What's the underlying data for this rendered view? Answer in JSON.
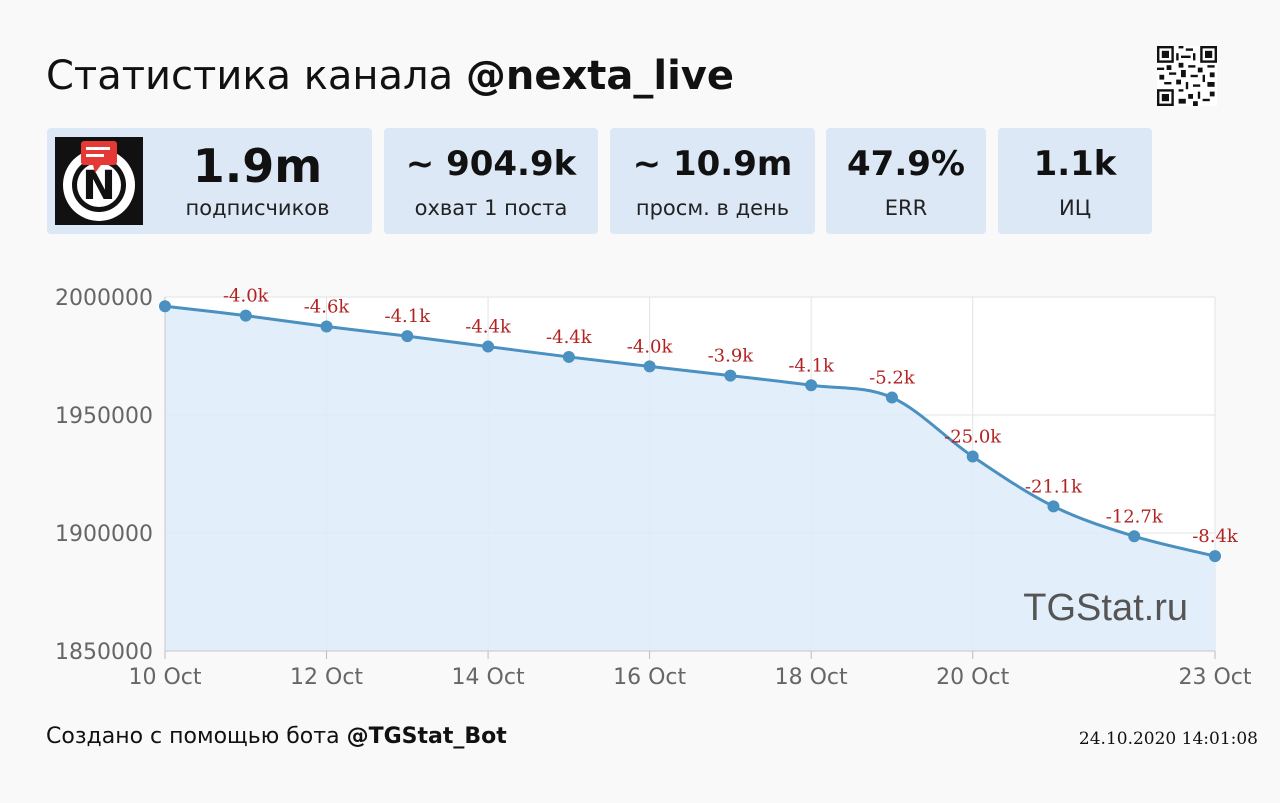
{
  "header": {
    "title_prefix": "Статистика канала",
    "channel": "@nexta_live",
    "qr_icon": "qr-code-icon",
    "logo_icon": "nexta-logo-icon",
    "logo_letter": "N",
    "accent_color": "#dde8f7"
  },
  "stats": [
    {
      "value": "1.9m",
      "label": "подписчиков"
    },
    {
      "value": "~ 904.9k",
      "label": "охват 1 поста"
    },
    {
      "value": "~ 10.9m",
      "label": "просм. в день"
    },
    {
      "value": "47.9%",
      "label": "ERR"
    },
    {
      "value": "1.1k",
      "label": "ИЦ"
    }
  ],
  "chart_data": {
    "type": "area",
    "title": "",
    "xlabel": "",
    "ylabel": "",
    "x": [
      "10 Oct",
      "11 Oct",
      "12 Oct",
      "13 Oct",
      "14 Oct",
      "15 Oct",
      "16 Oct",
      "17 Oct",
      "18 Oct",
      "19 Oct",
      "20 Oct",
      "21 Oct",
      "22 Oct",
      "23 Oct"
    ],
    "x_tick_labels": [
      "10 Oct",
      "12 Oct",
      "14 Oct",
      "16 Oct",
      "18 Oct",
      "20 Oct",
      "23 Oct"
    ],
    "values": [
      1996100,
      1992100,
      1987500,
      1983400,
      1979000,
      1974600,
      1970600,
      1966700,
      1962600,
      1957400,
      1932400,
      1911300,
      1898600,
      1890200
    ],
    "data_labels": [
      "",
      "-4.0k",
      "-4.6k",
      "-4.1k",
      "-4.4k",
      "-4.4k",
      "-4.0k",
      "-3.9k",
      "-4.1k",
      "-5.2k",
      "-25.0k",
      "-21.1k",
      "-12.7k",
      "-8.4k"
    ],
    "y_ticks": [
      1850000,
      1900000,
      1950000,
      2000000
    ],
    "ylim": [
      1850000,
      2000000
    ],
    "grid": true,
    "watermark": "TGStat.ru",
    "line_color": "#4a90c0",
    "fill_color": "#deebfa",
    "label_color": "#b22222"
  },
  "footer": {
    "prefix": "Создано с помощью бота",
    "bot": "@TGStat_Bot",
    "timestamp": "24.10.2020 14:01:08"
  }
}
